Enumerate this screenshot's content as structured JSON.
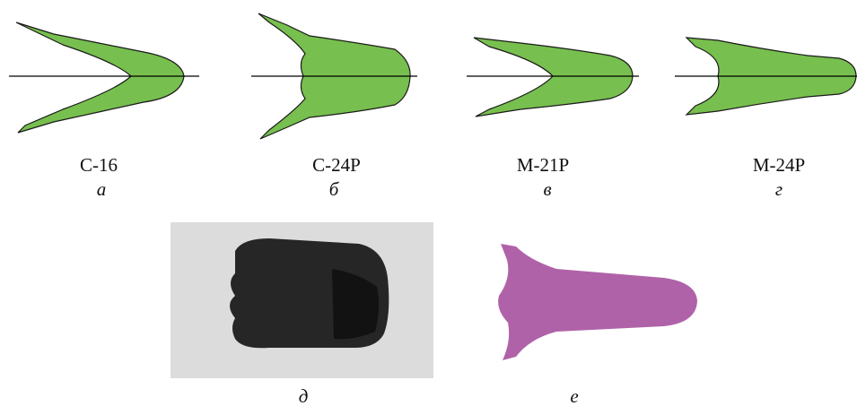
{
  "panels": [
    {
      "caption": "С-16",
      "letter": "а"
    },
    {
      "caption": "С-24Р",
      "letter": "б"
    },
    {
      "caption": "М-21Р",
      "letter": "в"
    },
    {
      "caption": "М-24Р",
      "letter": "г"
    },
    {
      "letter": "д"
    },
    {
      "letter": "е"
    }
  ]
}
